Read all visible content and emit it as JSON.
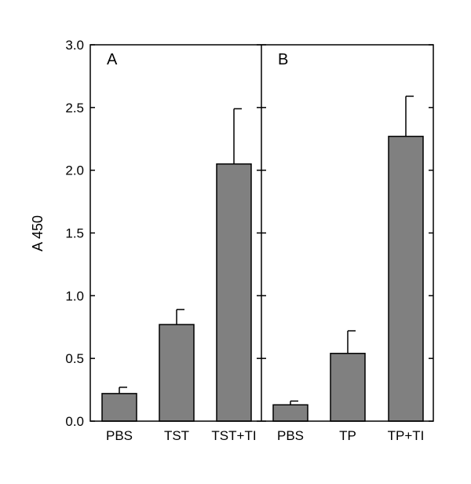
{
  "chart_data": {
    "type": "bar",
    "ylabel": "A  450",
    "ylim": [
      0,
      3.0
    ],
    "y_ticks": [
      "0.0",
      "0.5",
      "1.0",
      "1.5",
      "2.0",
      "2.5",
      "3.0"
    ],
    "colors": {
      "bar": "#808080",
      "edge": "#000000"
    },
    "panels": [
      {
        "label": "A",
        "categories": [
          "PBS",
          "TST",
          "TST+TI"
        ],
        "values": [
          0.22,
          0.77,
          2.05
        ],
        "errors": [
          0.05,
          0.12,
          0.44
        ]
      },
      {
        "label": "B",
        "categories": [
          "PBS",
          "TP",
          "TP+TI"
        ],
        "values": [
          0.13,
          0.54,
          2.27
        ],
        "errors": [
          0.03,
          0.18,
          0.32
        ]
      }
    ]
  }
}
